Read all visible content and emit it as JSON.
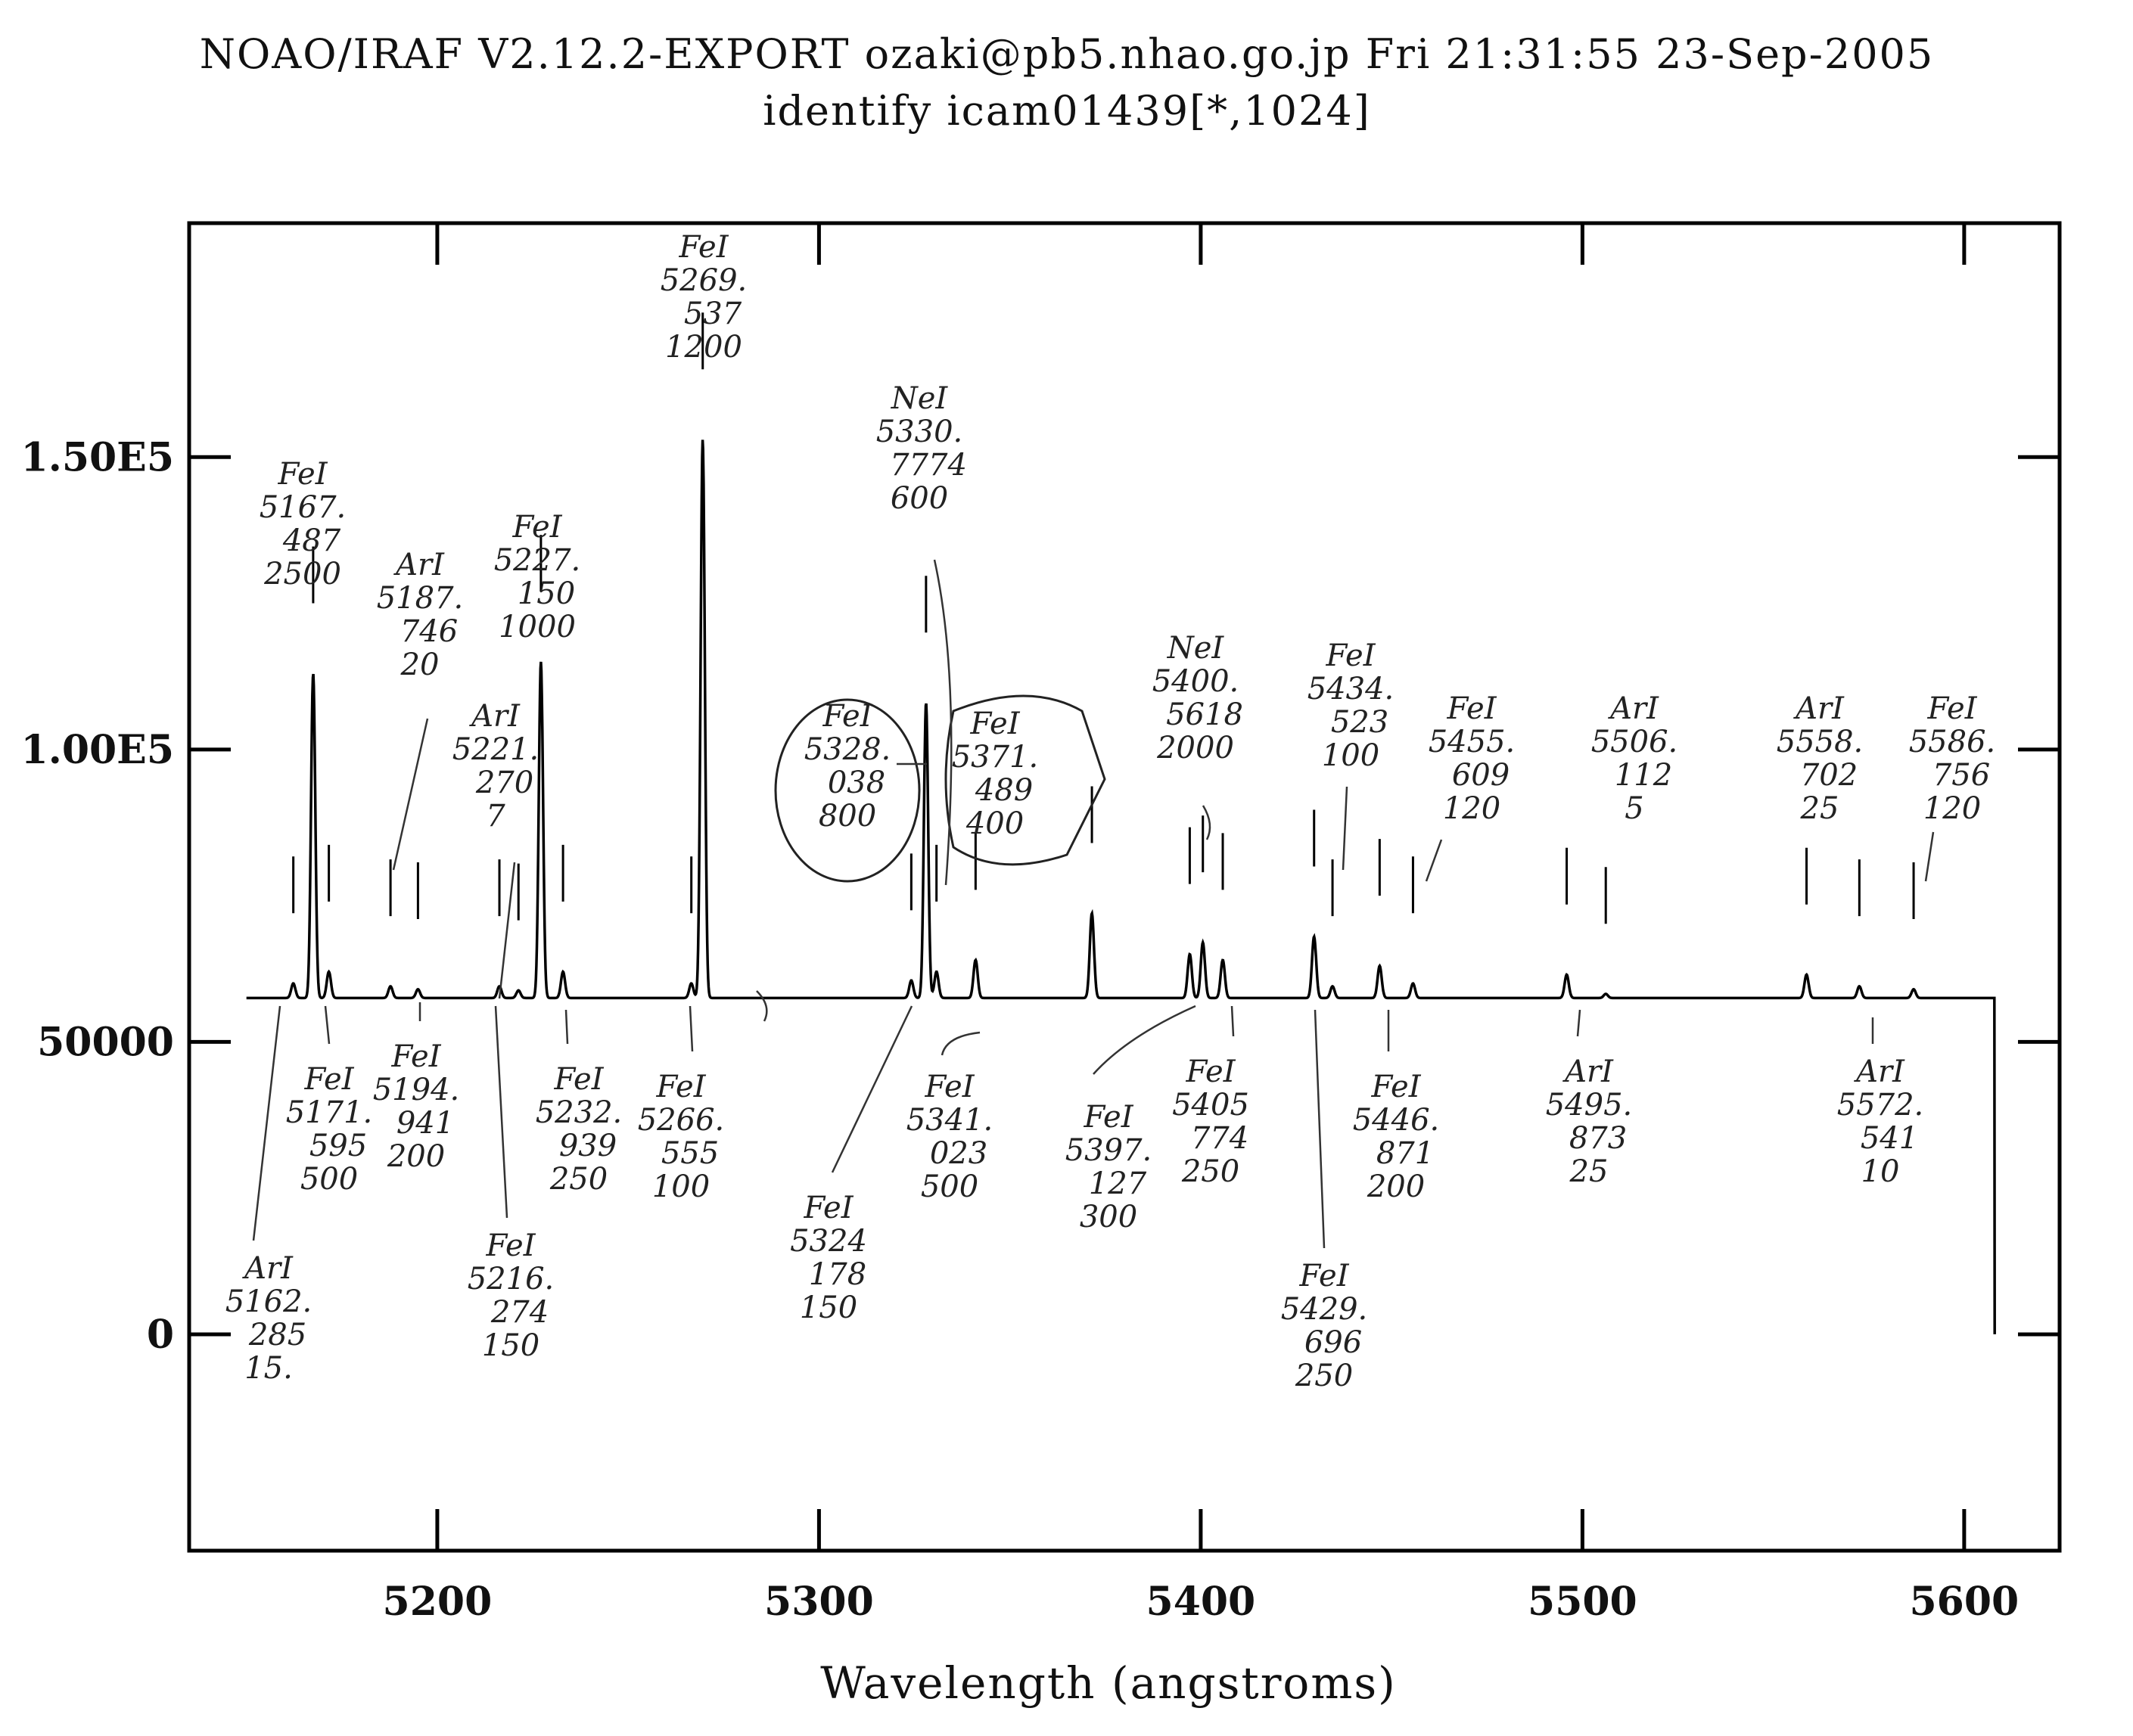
{
  "header": {
    "line1": "NOAO/IRAF V2.12.2-EXPORT ozaki@pb5.nhao.go.jp Fri 21:31:55 23-Sep-2005",
    "line2": "identify icam01439[*,1024]"
  },
  "chart_data": {
    "type": "line",
    "xlabel": "Wavelength (angstroms)",
    "ylabel": "",
    "xlim": [
      5135,
      5625
    ],
    "ylim": [
      -37000,
      190000
    ],
    "xticks": [
      5200,
      5300,
      5400,
      5500,
      5600
    ],
    "xtick_labels": [
      "5200",
      "5300",
      "5400",
      "5500",
      "5600"
    ],
    "yticks": [
      0,
      50000,
      100000,
      150000
    ],
    "ytick_labels": [
      "0",
      "50000",
      "1.00E5",
      "1.50E5"
    ],
    "baseline": 57500,
    "spectrum_x_range": [
      5150,
      5608
    ],
    "lines": [
      {
        "element": "ArI",
        "wavelength": "5162.285",
        "intensity": "15.",
        "peak": 60000
      },
      {
        "element": "FeI",
        "wavelength": "5167.487",
        "intensity": "2500",
        "peak": 113000
      },
      {
        "element": "FeI",
        "wavelength": "5171.595",
        "intensity": "500",
        "peak": 62000
      },
      {
        "element": "ArI",
        "wavelength": "5187.746",
        "intensity": "20",
        "peak": 59500
      },
      {
        "element": "FeI",
        "wavelength": "5194.941",
        "intensity": "200",
        "peak": 59000
      },
      {
        "element": "FeI",
        "wavelength": "5216.274",
        "intensity": "150",
        "peak": 59500
      },
      {
        "element": "ArI",
        "wavelength": "5221.270",
        "intensity": "7",
        "peak": 58800
      },
      {
        "element": "FeI",
        "wavelength": "5227.150",
        "intensity": "1000",
        "peak": 115000
      },
      {
        "element": "FeI",
        "wavelength": "5232.939",
        "intensity": "250",
        "peak": 62000
      },
      {
        "element": "FeI",
        "wavelength": "5266.555",
        "intensity": "100",
        "peak": 60000
      },
      {
        "element": "FeI",
        "wavelength": "5269.537",
        "intensity": "1200",
        "peak": 153000
      },
      {
        "element": "FeI",
        "wavelength": "5324.178",
        "intensity": "150",
        "peak": 60500
      },
      {
        "element": "FeI",
        "wavelength": "5328.038",
        "intensity": "800",
        "peak": 108000
      },
      {
        "element": "NeI",
        "wavelength": "5330.7774",
        "intensity": "600",
        "peak": 62000
      },
      {
        "element": "FeI",
        "wavelength": "5341.023",
        "intensity": "500",
        "peak": 64000
      },
      {
        "element": "FeI",
        "wavelength": "5371.489",
        "intensity": "400",
        "peak": 72000
      },
      {
        "element": "FeI",
        "wavelength": "5397.127",
        "intensity": "300",
        "peak": 65000
      },
      {
        "element": "NeI",
        "wavelength": "5400.5618",
        "intensity": "2000",
        "peak": 67000
      },
      {
        "element": "FeI",
        "wavelength": "5405.774",
        "intensity": "250",
        "peak": 64000
      },
      {
        "element": "FeI",
        "wavelength": "5429.696",
        "intensity": "250",
        "peak": 68000
      },
      {
        "element": "FeI",
        "wavelength": "5434.523",
        "intensity": "100",
        "peak": 59500
      },
      {
        "element": "FeI",
        "wavelength": "5446.871",
        "intensity": "200",
        "peak": 63000
      },
      {
        "element": "FeI",
        "wavelength": "5455.609",
        "intensity": "120",
        "peak": 60000
      },
      {
        "element": "ArI",
        "wavelength": "5495.873",
        "intensity": "25",
        "peak": 61500
      },
      {
        "element": "ArI",
        "wavelength": "5506.112",
        "intensity": "5",
        "peak": 58200
      },
      {
        "element": "ArI",
        "wavelength": "5558.702",
        "intensity": "25",
        "peak": 61500
      },
      {
        "element": "ArI",
        "wavelength": "5572.541",
        "intensity": "10",
        "peak": 59500
      },
      {
        "element": "FeI",
        "wavelength": "5586.756",
        "intensity": "120",
        "peak": 59000
      }
    ]
  },
  "annotations": [
    {
      "el": "FeI",
      "w1": "5167.",
      "w2": "487",
      "i": "2500"
    },
    {
      "el": "ArI",
      "w1": "5187.",
      "w2": "746",
      "i": "20"
    },
    {
      "el": "FeI",
      "w1": "5227.",
      "w2": "150",
      "i": "1000"
    },
    {
      "el": "ArI",
      "w1": "5221.",
      "w2": "270",
      "i": "7"
    },
    {
      "el": "FeI",
      "w1": "5269.",
      "w2": "537",
      "i": "1200"
    },
    {
      "el": "NeI",
      "w1": "5330.",
      "w2": "7774",
      "i": "600"
    },
    {
      "el": "FeI",
      "w1": "5328.",
      "w2": "038",
      "i": "800"
    },
    {
      "el": "FeI",
      "w1": "5371.",
      "w2": "489",
      "i": "400"
    },
    {
      "el": "NeI",
      "w1": "5400.",
      "w2": "5618",
      "i": "2000"
    },
    {
      "el": "FeI",
      "w1": "5434.",
      "w2": "523",
      "i": "100"
    },
    {
      "el": "FeI",
      "w1": "5455.",
      "w2": "609",
      "i": "120"
    },
    {
      "el": "ArI",
      "w1": "5506.",
      "w2": "112",
      "i": "5"
    },
    {
      "el": "ArI",
      "w1": "5558.",
      "w2": "702",
      "i": "25"
    },
    {
      "el": "FeI",
      "w1": "5586.",
      "w2": "756",
      "i": "120"
    },
    {
      "el": "ArI",
      "w1": "5162.",
      "w2": "285",
      "i": "15."
    },
    {
      "el": "FeI",
      "w1": "5171.",
      "w2": "595",
      "i": "500"
    },
    {
      "el": "FeI",
      "w1": "5194.",
      "w2": "941",
      "i": "200"
    },
    {
      "el": "FeI",
      "w1": "5216.",
      "w2": "274",
      "i": "150"
    },
    {
      "el": "FeI",
      "w1": "5232.",
      "w2": "939",
      "i": "250"
    },
    {
      "el": "FeI",
      "w1": "5266.",
      "w2": "555",
      "i": "100"
    },
    {
      "el": "FeI",
      "w1": "5324",
      "w2": "178",
      "i": "150"
    },
    {
      "el": "FeI",
      "w1": "5341.",
      "w2": "023",
      "i": "500"
    },
    {
      "el": "FeI",
      "w1": "5397.",
      "w2": "127",
      "i": "300"
    },
    {
      "el": "FeI",
      "w1": "5405",
      "w2": "774",
      "i": "250"
    },
    {
      "el": "FeI",
      "w1": "5429.",
      "w2": "696",
      "i": "250"
    },
    {
      "el": "FeI",
      "w1": "5446.",
      "w2": "871",
      "i": "200"
    },
    {
      "el": "ArI",
      "w1": "5495.",
      "w2": "873",
      "i": "25"
    },
    {
      "el": "ArI",
      "w1": "5572.",
      "w2": "541",
      "i": "10"
    }
  ]
}
